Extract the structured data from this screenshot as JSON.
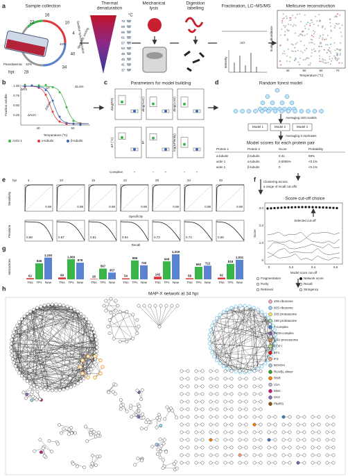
{
  "a": {
    "label": "a",
    "collection": {
      "title": "Sample collection",
      "hpi_label": "hpi:",
      "hpi": [
        "4",
        "10",
        "16",
        "22",
        "28",
        "34",
        "40"
      ],
      "parasitaemia_label": "Parasitaemia:",
      "parasitaemia": [
        "10%",
        "40%"
      ],
      "arcs": [
        "Sorbitol synchronization",
        "Magnetic sorting"
      ]
    },
    "denaturation": {
      "title": [
        "Thermal",
        "denaturation"
      ],
      "unit": "°C",
      "temperatures": [
        "73",
        "69",
        "65",
        "61",
        "57",
        "53",
        "49",
        "45",
        "41",
        "37"
      ]
    },
    "lysis": {
      "title": [
        "Mechanical",
        "lysis"
      ]
    },
    "digestion": {
      "title": [
        "Digestion",
        "labelling"
      ]
    },
    "ms": {
      "title": "Fractination, LC–MS/MS",
      "x_label": "m/z",
      "y_label": "Intensity"
    },
    "meltcurve": {
      "title": "Meltcurve reconstruction",
      "y_label": "Scaled abundance",
      "x_label": "Temperature (°C)",
      "xticks": [
        "40",
        "50",
        "60",
        "70"
      ]
    }
  },
  "b": {
    "label": "b",
    "y_label": "Fraction soluble",
    "x_label": "Temperature (°C)",
    "yticks": [
      "1.00",
      "0.75",
      "0.50",
      "0.25"
    ],
    "xticks": [
      "40",
      "60"
    ],
    "params": [
      "ΔRS",
      "ΔT",
      "ΔLoss",
      "ΔAUC",
      "Δslope"
    ],
    "legend": [
      {
        "name": "Actin 1",
        "color": "#3ab54a"
      },
      {
        "name": "α-tubulin",
        "color": "#e0393e"
      },
      {
        "name": "β-tubulin",
        "color": "#3e63b8"
      }
    ]
  },
  "c": {
    "label": "c",
    "title": "Parameters for model building",
    "panels": [
      "Δlog(RS)",
      "Δlog(AUC)",
      "Δlog(Loss)",
      "ΔT (°C)",
      "R²",
      "log(ΔPlenity)"
    ],
    "complex_label": "Complex:",
    "complex": [
      "−",
      "+"
    ]
  },
  "d": {
    "label": "d",
    "title": "Random forest model",
    "step1": "Averaging 100 models",
    "models": [
      "Model 1",
      "Model 2",
      "Model 3"
    ],
    "step2": "Averaging 3 replicates",
    "subtitle": "Model scores for each protein pair",
    "table": {
      "header": [
        "Protein 1",
        "Protein 2",
        "Score",
        "Probability"
      ],
      "rows": [
        [
          "α-tubulin",
          "β-tubulin",
          "0.41",
          "69%"
        ],
        [
          "actin 1",
          "α-tubulin",
          "0.0005%",
          "<0.1%"
        ],
        [
          "actin 1",
          "β-tubulin",
          "0",
          "<0.1%"
        ]
      ]
    }
  },
  "e": {
    "label": "e",
    "hpi_label": "hpi",
    "hpi": [
      "4",
      "10",
      "16",
      "22",
      "28",
      "34",
      "40"
    ],
    "roc": {
      "y_label": "Sensitivity",
      "x_label": "Specificity",
      "auc": [
        "0.98",
        "0.98",
        "0.98",
        "0.98",
        "0.98",
        "0.98",
        "0.98"
      ]
    },
    "pr": {
      "y_label": "Precision",
      "x_label": "Recall",
      "auc": [
        "0.88",
        "0.87",
        "0.81",
        "0.84",
        "0.73",
        "0.74",
        "0.68"
      ]
    }
  },
  "f": {
    "label": "f",
    "note": [
      "Clustering across",
      "a range of recall cut-offs"
    ],
    "title": "Score cut-off choice",
    "annotation": "Selected cut-off",
    "y_label": "Score",
    "x_label": "Model score cut-off",
    "xticks": [
      "0",
      "0.2",
      "0.4",
      "0.6"
    ],
    "yticks": [
      "3.0",
      "2.0",
      "1.0",
      "0"
    ],
    "legend": [
      "Fragmentation",
      "Network score",
      "Purity",
      "Recall",
      "Retrieval",
      "Stringency"
    ]
  },
  "g": {
    "label": "g",
    "y_label": "Interactions",
    "series": [
      {
        "name": "TNs",
        "color": "#e0393e",
        "values": [
          62,
          99,
          26,
          54,
          142,
          58,
          92
        ]
      },
      {
        "name": "TPs",
        "color": "#3ab54a",
        "values": [
          846,
          1060,
          567,
          996,
          949,
          662,
          818
        ],
        "value_labels": [
          "846",
          "1,060",
          "567",
          "996",
          "949",
          "662",
          "818"
        ]
      },
      {
        "name": "New",
        "color": "#5b82d1",
        "values": [
          1150,
          878,
          357,
          740,
          1319,
          722,
          1031
        ],
        "value_labels": [
          "1,150",
          "878",
          "357",
          "740",
          "1,319",
          "722",
          "1,031"
        ]
      }
    ]
  },
  "h": {
    "label": "h",
    "title": "MAP-X network at 34 hpi",
    "legend": [
      {
        "name": "40S ribosome",
        "color": "#f2a7b4"
      },
      {
        "name": "60S ribosome",
        "color": "#8fd0ee"
      },
      {
        "name": "20S proteasome",
        "color": "#f3e36b"
      },
      {
        "name": "19S proteasome",
        "color": "#a6dba0"
      },
      {
        "name": "T-complex",
        "color": "#3b7fc4"
      },
      {
        "name": "MCM complex",
        "color": "#7b5ea7"
      },
      {
        "name": "SSU processome",
        "color": "#c98b52"
      },
      {
        "name": "COP I",
        "color": "#b9e08a"
      },
      {
        "name": "EF1",
        "color": "#e31a1c"
      },
      {
        "name": "IF3",
        "color": "#f7a072"
      },
      {
        "name": "BCKDH",
        "color": "#9ecae1"
      },
      {
        "name": "RUVBL dimer",
        "color": "#33a02c"
      },
      {
        "name": "RNR",
        "color": "#ff7f00"
      },
      {
        "name": "V1A",
        "color": "#cab2d6"
      },
      {
        "name": "MSC",
        "color": "#c51b7d"
      },
      {
        "name": "CK2",
        "color": "#8c6bb1"
      },
      {
        "name": "PfeIRS",
        "color": "#8c510a"
      }
    ]
  }
}
